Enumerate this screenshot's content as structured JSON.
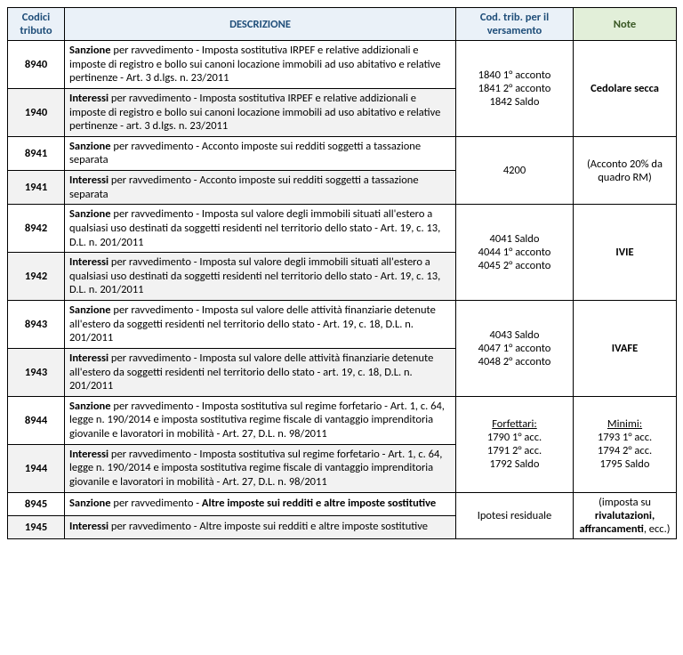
{
  "headers": {
    "codici": "Codici tributo",
    "descrizione": "DESCRIZIONE",
    "cod_trib": "Cod. trib. per il versamento",
    "note": "Note"
  },
  "groups": [
    {
      "code1": "8940",
      "desc1_bold": "Sanzione",
      "desc1_rest": " per ravvedimento - Imposta sostitutiva IRPEF e relative addizionali e imposte di registro e bollo sui canoni locazione immobili ad uso abitativo e relative pertinenze - Art. 3 d.lgs. n. 23/2011",
      "code2": "1940",
      "desc2_bold": "Interessi",
      "desc2_rest": " per ravvedimento - Imposta sostitutiva IRPEF e relative addizionali e imposte di registro e bollo sui canoni locazione immobili ad uso abitativo e relative pertinenze - art. 3 d.lgs. n. 23/2011",
      "trib_lines": [
        "1840 1° acconto",
        "1841 2° acconto",
        "1842 Saldo"
      ],
      "note_html": "<span class='bold'>Cedolare secca</span>"
    },
    {
      "code1": "8941",
      "desc1_bold": "Sanzione",
      "desc1_rest": " per ravvedimento - Acconto imposte sui redditi soggetti a tassazione separata",
      "code2": "1941",
      "desc2_bold": "Interessi",
      "desc2_rest": " per ravvedimento - Acconto imposte sui redditi soggetti a tassazione separata",
      "trib_lines": [
        "4200"
      ],
      "note_html": "(Acconto 20% da quadro RM)"
    },
    {
      "code1": "8942",
      "desc1_bold": "Sanzione",
      "desc1_rest": " per ravvedimento - Imposta sul valore degli immobili situati all'estero a qualsiasi uso destinati da soggetti residenti nel territorio dello stato - Art. 19, c. 13, D.L. n. 201/2011",
      "code2": "1942",
      "desc2_bold": "Interessi",
      "desc2_rest": " per ravvedimento - Imposta sul valore degli immobili situati all'estero a qualsiasi uso destinati da soggetti residenti nel territorio dello stato - Art. 19, c. 13, D.L. n. 201/2011",
      "trib_lines": [
        "4041 Saldo",
        "4044 1° acconto",
        "4045 2° acconto"
      ],
      "note_html": "<span class='bold'>IVIE</span>"
    },
    {
      "code1": "8943",
      "desc1_bold": "Sanzione",
      "desc1_rest": " per ravvedimento - Imposta sul valore delle attività finanziarie detenute all'estero da soggetti residenti nel territorio dello stato - Art. 19, c. 18, D.L. n. 201/2011",
      "code2": "1943",
      "desc2_bold": "Interessi",
      "desc2_rest": " per ravvedimento - Imposta sul valore delle attività finanziarie detenute all'estero da soggetti residenti nel territorio dello stato - art. 19, c. 18, D.L. n. 201/2011",
      "trib_lines": [
        "4043 Saldo",
        "4047 1° acconto",
        "4048 2° acconto"
      ],
      "note_html": "<span class='bold'>IVAFE</span>"
    },
    {
      "code1": "8944",
      "desc1_bold": "Sanzione",
      "desc1_rest": " per ravvedimento - Imposta sostitutiva sul regime forfetario - Art. 1, c. 64, legge n. 190/2014 e imposta sostitutiva regime fiscale di vantaggio imprenditoria giovanile e lavoratori in mobilità - Art. 27, D.L. n. 98/2011",
      "code2": "1944",
      "desc2_bold": "Interessi",
      "desc2_rest": " per ravvedimento - Imposta sostitutiva sul regime forfetario - Art. 1, c. 64, legge n. 190/2014 e imposta sostitutiva regime fiscale di vantaggio imprenditoria giovanile e lavoratori in mobilità - Art. 27, D.L. n. 98/2011",
      "trib_html": "<span class='u'>Forfettari:</span><br>1790 1° acc.<br>1791 2° acc.<br>1792 Saldo",
      "note_html": "<span class='u'>Minimi:</span><br>1793 1° acc.<br>1794 2° acc.<br>1795 Saldo"
    },
    {
      "code1": "8945",
      "desc1_bold": "Sanzione",
      "desc1_rest_html": " per ravvedimento - <span class='bold'>Altre imposte sui redditi e altre imposte sostitutive</span>",
      "code2": "1945",
      "desc2_bold": "Interessi",
      "desc2_rest": " per ravvedimento - Altre imposte sui redditi e altre imposte sostitutive",
      "trib_lines": [
        "Ipotesi residuale"
      ],
      "note_html": "(imposta su <span class='bold'>rivalutazioni, affrancamenti</span>, ecc.)"
    }
  ]
}
